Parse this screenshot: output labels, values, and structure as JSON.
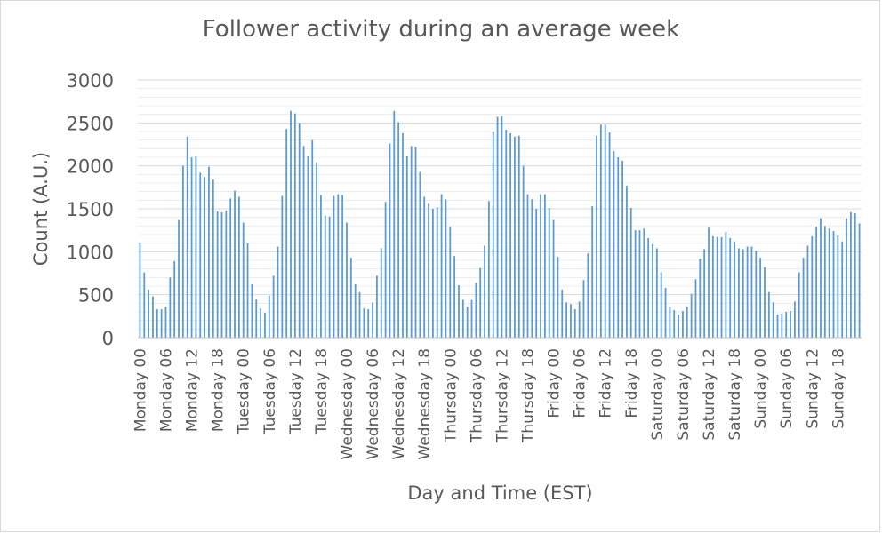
{
  "chart_data": {
    "type": "bar",
    "title": "Follower activity during an average week",
    "xlabel": "Day and Time (EST)",
    "ylabel": "Count (A.U.)",
    "ylim": [
      0,
      3000
    ],
    "yticks": [
      0,
      500,
      1000,
      1500,
      2000,
      2500,
      3000
    ],
    "grid": true,
    "legend": "none",
    "bar_color": "#5b9bd5",
    "categories": [
      "Monday 00",
      "Monday 01",
      "Monday 02",
      "Monday 03",
      "Monday 04",
      "Monday 05",
      "Monday 06",
      "Monday 07",
      "Monday 08",
      "Monday 09",
      "Monday 10",
      "Monday 11",
      "Monday 12",
      "Monday 13",
      "Monday 14",
      "Monday 15",
      "Monday 16",
      "Monday 17",
      "Monday 18",
      "Monday 19",
      "Monday 20",
      "Monday 21",
      "Monday 22",
      "Monday 23",
      "Tuesday 00",
      "Tuesday 01",
      "Tuesday 02",
      "Tuesday 03",
      "Tuesday 04",
      "Tuesday 05",
      "Tuesday 06",
      "Tuesday 07",
      "Tuesday 08",
      "Tuesday 09",
      "Tuesday 10",
      "Tuesday 11",
      "Tuesday 12",
      "Tuesday 13",
      "Tuesday 14",
      "Tuesday 15",
      "Tuesday 16",
      "Tuesday 17",
      "Tuesday 18",
      "Tuesday 19",
      "Tuesday 20",
      "Tuesday 21",
      "Tuesday 22",
      "Tuesday 23",
      "Wednesday 00",
      "Wednesday 01",
      "Wednesday 02",
      "Wednesday 03",
      "Wednesday 04",
      "Wednesday 05",
      "Wednesday 06",
      "Wednesday 07",
      "Wednesday 08",
      "Wednesday 09",
      "Wednesday 10",
      "Wednesday 11",
      "Wednesday 12",
      "Wednesday 13",
      "Wednesday 14",
      "Wednesday 15",
      "Wednesday 16",
      "Wednesday 17",
      "Wednesday 18",
      "Wednesday 19",
      "Wednesday 20",
      "Wednesday 21",
      "Wednesday 22",
      "Wednesday 23",
      "Thursday 00",
      "Thursday 01",
      "Thursday 02",
      "Thursday 03",
      "Thursday 04",
      "Thursday 05",
      "Thursday 06",
      "Thursday 07",
      "Thursday 08",
      "Thursday 09",
      "Thursday 10",
      "Thursday 11",
      "Thursday 12",
      "Thursday 13",
      "Thursday 14",
      "Thursday 15",
      "Thursday 16",
      "Thursday 17",
      "Thursday 18",
      "Thursday 19",
      "Thursday 20",
      "Thursday 21",
      "Thursday 22",
      "Thursday 23",
      "Friday 00",
      "Friday 01",
      "Friday 02",
      "Friday 03",
      "Friday 04",
      "Friday 05",
      "Friday 06",
      "Friday 07",
      "Friday 08",
      "Friday 09",
      "Friday 10",
      "Friday 11",
      "Friday 12",
      "Friday 13",
      "Friday 14",
      "Friday 15",
      "Friday 16",
      "Friday 17",
      "Friday 18",
      "Friday 19",
      "Friday 20",
      "Friday 21",
      "Friday 22",
      "Friday 23",
      "Saturday 00",
      "Saturday 01",
      "Saturday 02",
      "Saturday 03",
      "Saturday 04",
      "Saturday 05",
      "Saturday 06",
      "Saturday 07",
      "Saturday 08",
      "Saturday 09",
      "Saturday 10",
      "Saturday 11",
      "Saturday 12",
      "Saturday 13",
      "Saturday 14",
      "Saturday 15",
      "Saturday 16",
      "Saturday 17",
      "Saturday 18",
      "Saturday 19",
      "Saturday 20",
      "Saturday 21",
      "Saturday 22",
      "Saturday 23",
      "Sunday 00",
      "Sunday 01",
      "Sunday 02",
      "Sunday 03",
      "Sunday 04",
      "Sunday 05",
      "Sunday 06",
      "Sunday 07",
      "Sunday 08",
      "Sunday 09",
      "Sunday 10",
      "Sunday 11",
      "Sunday 12",
      "Sunday 13",
      "Sunday 14",
      "Sunday 15",
      "Sunday 16",
      "Sunday 17",
      "Sunday 18",
      "Sunday 19",
      "Sunday 20",
      "Sunday 21",
      "Sunday 22",
      "Sunday 23"
    ],
    "visible_tick_labels": [
      "Monday 00",
      "Monday 06",
      "Monday 12",
      "Monday 18",
      "Tuesday 00",
      "Tuesday 06",
      "Tuesday 12",
      "Tuesday 18",
      "Wednesday 00",
      "Wednesday 06",
      "Wednesday 12",
      "Wednesday 18",
      "Thursday 00",
      "Thursday 06",
      "Thursday 12",
      "Thursday 18",
      "Friday 00",
      "Friday 06",
      "Friday 12",
      "Friday 18",
      "Saturday 00",
      "Saturday 06",
      "Saturday 12",
      "Saturday 18",
      "Sunday 00",
      "Sunday 06",
      "Sunday 12",
      "Sunday 18"
    ],
    "values": [
      1110,
      760,
      560,
      480,
      330,
      330,
      360,
      700,
      890,
      1370,
      2000,
      2340,
      2100,
      2110,
      1920,
      1870,
      1990,
      1840,
      1470,
      1460,
      1480,
      1620,
      1710,
      1640,
      1340,
      1100,
      620,
      450,
      340,
      290,
      490,
      720,
      1060,
      1650,
      2430,
      2640,
      2610,
      2500,
      2230,
      2110,
      2300,
      2040,
      1660,
      1420,
      1410,
      1650,
      1670,
      1660,
      1340,
      930,
      620,
      530,
      340,
      330,
      410,
      720,
      1040,
      1580,
      2260,
      2640,
      2510,
      2380,
      2110,
      2230,
      2220,
      1930,
      1640,
      1560,
      1500,
      1520,
      1670,
      1610,
      1290,
      950,
      610,
      440,
      360,
      440,
      640,
      810,
      1070,
      1590,
      2400,
      2570,
      2580,
      2420,
      2380,
      2340,
      2350,
      2000,
      1670,
      1610,
      1500,
      1670,
      1670,
      1510,
      1370,
      940,
      560,
      410,
      390,
      330,
      420,
      670,
      980,
      1530,
      2350,
      2480,
      2480,
      2390,
      2170,
      2100,
      2060,
      1770,
      1510,
      1250,
      1250,
      1270,
      1160,
      1090,
      1040,
      760,
      580,
      360,
      320,
      270,
      310,
      360,
      510,
      680,
      920,
      1030,
      1280,
      1180,
      1170,
      1170,
      1230,
      1160,
      1120,
      1040,
      1030,
      1060,
      1060,
      1010,
      930,
      820,
      530,
      410,
      270,
      280,
      300,
      310,
      420,
      760,
      930,
      1070,
      1180,
      1290,
      1390,
      1300,
      1270,
      1240,
      1190,
      1120,
      1390,
      1460,
      1450,
      1330
    ]
  }
}
